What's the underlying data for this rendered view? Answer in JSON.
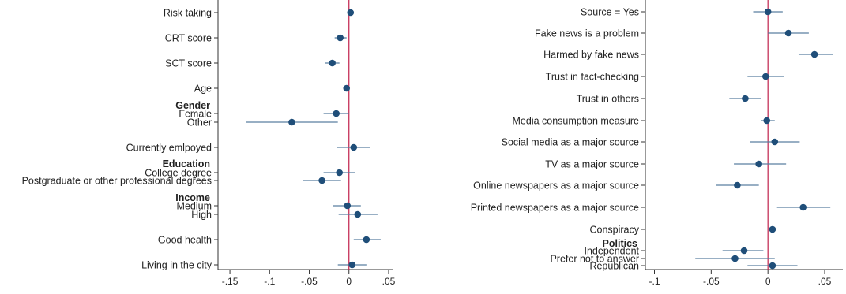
{
  "chart_data": [
    {
      "type": "scatter",
      "subtype": "coefficient-plot",
      "title": "",
      "xlabel": "",
      "ylabel": "",
      "xlim": [
        -0.165,
        0.055
      ],
      "xticks": [
        -0.15,
        -0.1,
        -0.05,
        0,
        0.05
      ],
      "xtick_labels": [
        "-.15",
        "-.1",
        "-.05",
        "0",
        ".05"
      ],
      "reference_line_x": 0,
      "reference_line_color": "#c0204a",
      "marker_color": "#1f4e79",
      "ci_color": "#5a7fa0",
      "grid": false,
      "rows": [
        {
          "label": "Risk taking",
          "estimate": 0.002,
          "ci_low": 0.002,
          "ci_high": 0.002
        },
        {
          "label": "CRT score",
          "estimate": -0.011,
          "ci_low": -0.018,
          "ci_high": -0.003
        },
        {
          "label": "SCT score",
          "estimate": -0.021,
          "ci_low": -0.03,
          "ci_high": -0.012
        },
        {
          "label": "Age",
          "estimate": -0.003,
          "ci_low": -0.003,
          "ci_high": -0.003
        },
        {
          "group": "Gender",
          "label": "Female",
          "estimate": -0.016,
          "ci_low": -0.032,
          "ci_high": 0.0
        },
        {
          "group": "Gender",
          "label": "Other",
          "estimate": -0.072,
          "ci_low": -0.13,
          "ci_high": -0.014
        },
        {
          "label": "Currently emlpoyed",
          "estimate": 0.006,
          "ci_low": -0.015,
          "ci_high": 0.027
        },
        {
          "group": "Education",
          "label": "College degree",
          "estimate": -0.012,
          "ci_low": -0.032,
          "ci_high": 0.008
        },
        {
          "group": "Education",
          "label": "Postgraduate or other professional degrees",
          "estimate": -0.034,
          "ci_low": -0.058,
          "ci_high": -0.01
        },
        {
          "group": "Income",
          "label": "Medium",
          "estimate": -0.002,
          "ci_low": -0.02,
          "ci_high": 0.015
        },
        {
          "group": "Income",
          "label": "High",
          "estimate": 0.011,
          "ci_low": -0.013,
          "ci_high": 0.036
        },
        {
          "label": "Good health",
          "estimate": 0.022,
          "ci_low": 0.006,
          "ci_high": 0.04
        },
        {
          "label": "Living in the city",
          "estimate": 0.004,
          "ci_low": -0.014,
          "ci_high": 0.022
        }
      ],
      "groups": [
        {
          "name": "Gender"
        },
        {
          "name": "Education"
        },
        {
          "name": "Income"
        }
      ]
    },
    {
      "type": "scatter",
      "subtype": "coefficient-plot",
      "title": "",
      "xlabel": "",
      "ylabel": "",
      "xlim": [
        -0.108,
        0.066
      ],
      "xticks": [
        -0.1,
        -0.05,
        0,
        0.05
      ],
      "xtick_labels": [
        "-.1",
        "-.05",
        "0",
        ".05"
      ],
      "reference_line_x": 0,
      "reference_line_color": "#c0204a",
      "marker_color": "#1f4e79",
      "ci_color": "#5a7fa0",
      "grid": false,
      "rows": [
        {
          "label": "Source = Yes",
          "estimate": 0.0,
          "ci_low": -0.013,
          "ci_high": 0.013
        },
        {
          "label": "Fake news is a problem",
          "estimate": 0.018,
          "ci_low": 0.0,
          "ci_high": 0.036
        },
        {
          "label": "Harmed by fake news",
          "estimate": 0.041,
          "ci_low": 0.027,
          "ci_high": 0.057
        },
        {
          "label": "Trust in fact-checking",
          "estimate": -0.002,
          "ci_low": -0.018,
          "ci_high": 0.014
        },
        {
          "label": "Trust in others",
          "estimate": -0.02,
          "ci_low": -0.034,
          "ci_high": -0.006
        },
        {
          "label": "Media consumption measure",
          "estimate": -0.001,
          "ci_low": -0.006,
          "ci_high": 0.006
        },
        {
          "label": "Social media as a major source",
          "estimate": 0.006,
          "ci_low": -0.016,
          "ci_high": 0.028
        },
        {
          "label": "TV as a major source",
          "estimate": -0.008,
          "ci_low": -0.03,
          "ci_high": 0.016
        },
        {
          "label": "Online newspapers as a major source",
          "estimate": -0.027,
          "ci_low": -0.046,
          "ci_high": -0.008
        },
        {
          "label": "Printed newspapers as a major source",
          "estimate": 0.031,
          "ci_low": 0.008,
          "ci_high": 0.055
        },
        {
          "label": "Conspiracy",
          "estimate": 0.004,
          "ci_low": 0.004,
          "ci_high": 0.004
        },
        {
          "group": "Politics",
          "label": "Independent",
          "estimate": -0.021,
          "ci_low": -0.04,
          "ci_high": -0.004
        },
        {
          "group": "Politics",
          "label": "Prefer not to answer",
          "estimate": -0.029,
          "ci_low": -0.064,
          "ci_high": 0.006
        },
        {
          "group": "Politics",
          "label": "Republican",
          "estimate": 0.004,
          "ci_low": -0.018,
          "ci_high": 0.026
        }
      ],
      "groups": [
        {
          "name": "Politics"
        }
      ]
    }
  ]
}
